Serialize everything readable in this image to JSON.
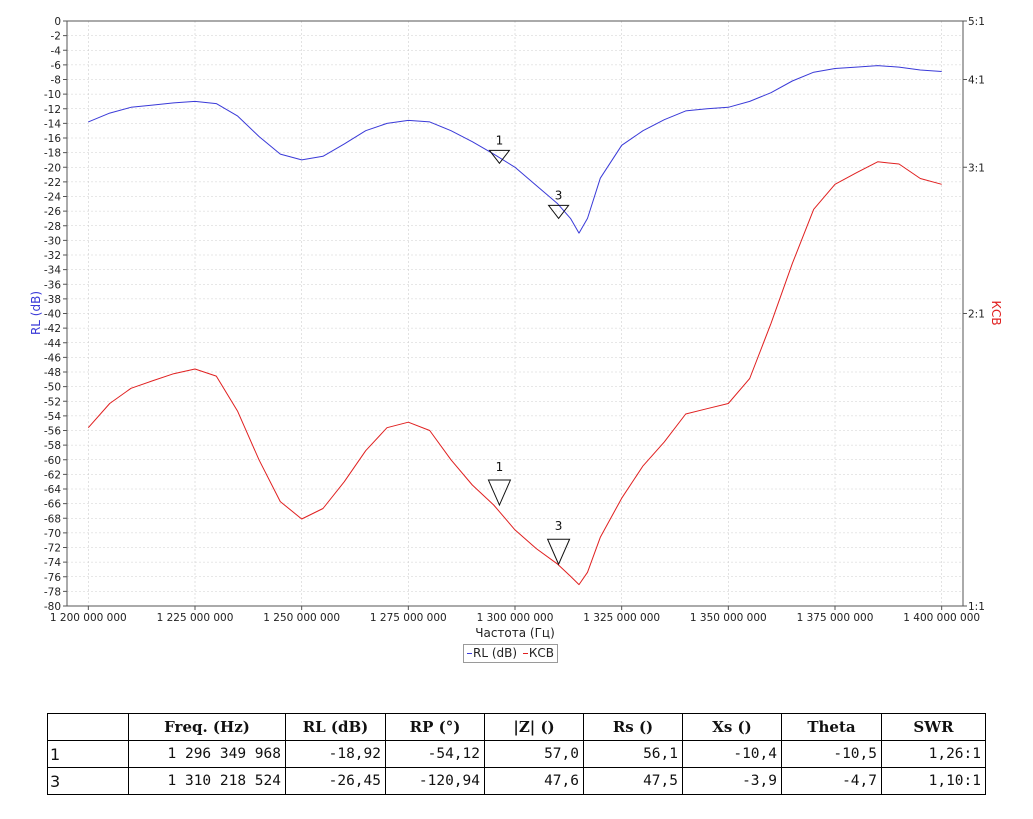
{
  "colors": {
    "rl": "#3a3ad8",
    "swr": "#e02020",
    "grid": "#cfcfcf",
    "axis": "#555555"
  },
  "chart_data": {
    "type": "line",
    "xlabel": "Частота (Гц)",
    "ylabel_left": "RL (dB)",
    "ylabel_right": "КСВ",
    "xlim": [
      1195000000,
      1405000000
    ],
    "ylim_left": [
      -80,
      0
    ],
    "xticks": [
      1200000000,
      1225000000,
      1250000000,
      1275000000,
      1300000000,
      1325000000,
      1350000000,
      1375000000,
      1400000000
    ],
    "xtick_labels": [
      "1 200 000 000",
      "1 225 000 000",
      "1 250 000 000",
      "1 275 000 000",
      "1 300 000 000",
      "1 325 000 000",
      "1 350 000 000",
      "1 375 000 000",
      "1 400 000 000"
    ],
    "ytick_labels_left": [
      "0",
      "-2",
      "-4",
      "-6",
      "-8",
      "-10",
      "-12",
      "-14",
      "-16",
      "-18",
      "-20",
      "-22",
      "-24",
      "-26",
      "-28",
      "-30",
      "-32",
      "-34",
      "-36",
      "-38",
      "-40",
      "-42",
      "-44",
      "-46",
      "-48",
      "-50",
      "-52",
      "-54",
      "-56",
      "-58",
      "-60",
      "-62",
      "-64",
      "-66",
      "-68",
      "-70",
      "-72",
      "-74",
      "-76",
      "-78",
      "-80"
    ],
    "ytick_labels_right": [
      "5:1",
      "4:1",
      "3:1",
      "2:1",
      "1:1"
    ],
    "ytick_values_right": [
      5,
      4,
      3,
      2,
      1
    ],
    "legend": [
      "RL (dB)",
      "КСВ"
    ],
    "legend_position": "bottom-center",
    "grid": true,
    "series": [
      {
        "name": "RL (dB)",
        "axis": "left",
        "x": [
          1200000000,
          1205000000,
          1210000000,
          1215000000,
          1220000000,
          1225000000,
          1230000000,
          1235000000,
          1240000000,
          1245000000,
          1250000000,
          1255000000,
          1260000000,
          1265000000,
          1270000000,
          1275000000,
          1280000000,
          1285000000,
          1290000000,
          1295000000,
          1300000000,
          1305000000,
          1310000000,
          1313000000,
          1315000000,
          1317000000,
          1320000000,
          1325000000,
          1330000000,
          1335000000,
          1340000000,
          1345000000,
          1350000000,
          1355000000,
          1360000000,
          1365000000,
          1370000000,
          1375000000,
          1380000000,
          1385000000,
          1390000000,
          1395000000,
          1400000000
        ],
        "values": [
          -13.8,
          -12.6,
          -11.8,
          -11.5,
          -11.2,
          -11.0,
          -11.3,
          -13.0,
          -15.8,
          -18.2,
          -19.0,
          -18.5,
          -16.8,
          -15.0,
          -14.0,
          -13.6,
          -13.8,
          -15.0,
          -16.5,
          -18.2,
          -20.0,
          -22.5,
          -25.0,
          -27.0,
          -29.0,
          -27.0,
          -21.5,
          -17.0,
          -15.0,
          -13.5,
          -12.3,
          -12.0,
          -11.8,
          -11.0,
          -9.8,
          -8.2,
          -7.0,
          -6.5,
          -6.3,
          -6.1,
          -6.3,
          -6.7,
          -6.9
        ]
      },
      {
        "name": "КСВ",
        "axis": "right",
        "x": [
          1200000000,
          1205000000,
          1210000000,
          1215000000,
          1220000000,
          1225000000,
          1230000000,
          1235000000,
          1240000000,
          1245000000,
          1250000000,
          1255000000,
          1260000000,
          1265000000,
          1270000000,
          1275000000,
          1280000000,
          1285000000,
          1290000000,
          1295000000,
          1300000000,
          1305000000,
          1310000000,
          1313000000,
          1315000000,
          1317000000,
          1320000000,
          1325000000,
          1330000000,
          1335000000,
          1340000000,
          1345000000,
          1350000000,
          1355000000,
          1360000000,
          1365000000,
          1370000000,
          1375000000,
          1380000000,
          1385000000,
          1390000000,
          1395000000,
          1400000000
        ],
        "values": [
          1.51,
          1.6,
          1.66,
          1.69,
          1.72,
          1.74,
          1.71,
          1.57,
          1.4,
          1.27,
          1.22,
          1.25,
          1.33,
          1.43,
          1.51,
          1.53,
          1.5,
          1.4,
          1.32,
          1.26,
          1.19,
          1.14,
          1.1,
          1.07,
          1.05,
          1.08,
          1.17,
          1.28,
          1.38,
          1.46,
          1.56,
          1.58,
          1.6,
          1.7,
          1.95,
          2.28,
          2.65,
          2.85,
          2.95,
          3.05,
          3.03,
          2.9,
          2.85
        ]
      }
    ],
    "markers": [
      {
        "label": "1",
        "x": 1296349968,
        "rl": -18.92,
        "swr": 1.26
      },
      {
        "label": "3",
        "x": 1310218524,
        "rl": -26.45,
        "swr": 1.1
      }
    ]
  },
  "table": {
    "headers": [
      "",
      "Freq. (Hz)",
      "RL (dB)",
      "RP (°)",
      "|Z| ()",
      "Rs ()",
      "Xs ()",
      "Theta",
      "SWR"
    ],
    "rows": [
      [
        "1",
        "1 296 349 968",
        "-18,92",
        "-54,12",
        "57,0",
        "56,1",
        "-10,4",
        "-10,5",
        "1,26:1"
      ],
      [
        "3",
        "1 310 218 524",
        "-26,45",
        "-120,94",
        "47,6",
        "47,5",
        "-3,9",
        "-4,7",
        "1,10:1"
      ]
    ]
  }
}
